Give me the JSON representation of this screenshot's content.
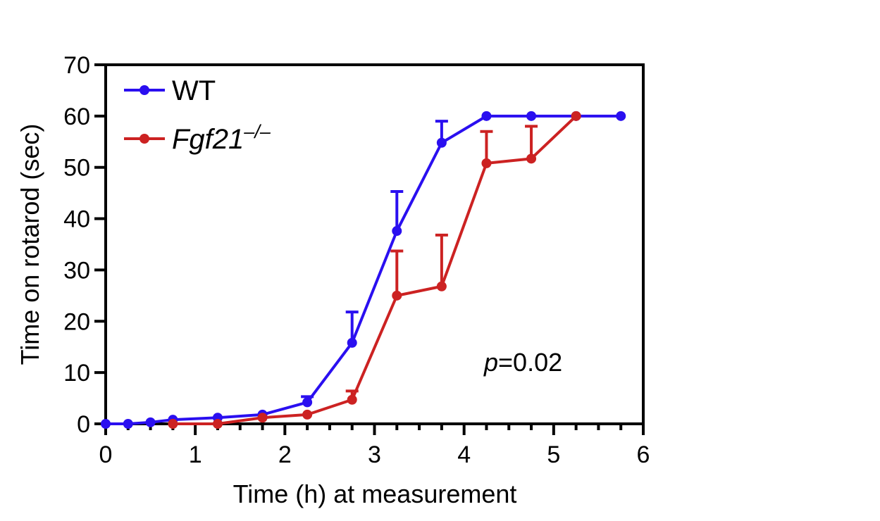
{
  "chart_data": {
    "type": "line",
    "title": "",
    "xlabel": "Time (h) at measurement",
    "ylabel": "Time on rotarod (sec)",
    "xlim": [
      0,
      6
    ],
    "ylim": [
      0,
      70
    ],
    "x_ticks": [
      0,
      1,
      2,
      3,
      4,
      5,
      6
    ],
    "y_ticks": [
      0,
      10,
      20,
      30,
      40,
      50,
      60,
      70
    ],
    "grid": false,
    "legend_position": "top-left",
    "series": [
      {
        "name": "WT",
        "color": "#2a0ff0",
        "x": [
          0,
          0.25,
          0.5,
          0.75,
          1.25,
          1.75,
          2.25,
          2.75,
          3.25,
          3.75,
          4.25,
          4.75,
          5.25,
          5.75
        ],
        "y": [
          0,
          0,
          0.3,
          0.8,
          1.2,
          1.8,
          4.2,
          15.8,
          37.6,
          54.8,
          60,
          60,
          60,
          60
        ],
        "err_upper": [
          0,
          0,
          0,
          0,
          0,
          0,
          5.3,
          21.8,
          45.3,
          59,
          null,
          null,
          null,
          null
        ]
      },
      {
        "name_main": "Fgf21",
        "name_sup": "–/–",
        "color": "#cc2222",
        "x": [
          0.75,
          1.25,
          1.75,
          2.25,
          2.75,
          3.25,
          3.75,
          4.25,
          4.75,
          5.25
        ],
        "y": [
          0,
          0,
          1.2,
          1.8,
          4.7,
          25,
          26.8,
          50.8,
          51.7,
          60
        ],
        "err_upper": [
          null,
          null,
          null,
          null,
          6.4,
          33.7,
          36.8,
          57,
          58,
          null
        ]
      }
    ],
    "annotation": {
      "italic": "p",
      "text": "=0.02"
    }
  }
}
